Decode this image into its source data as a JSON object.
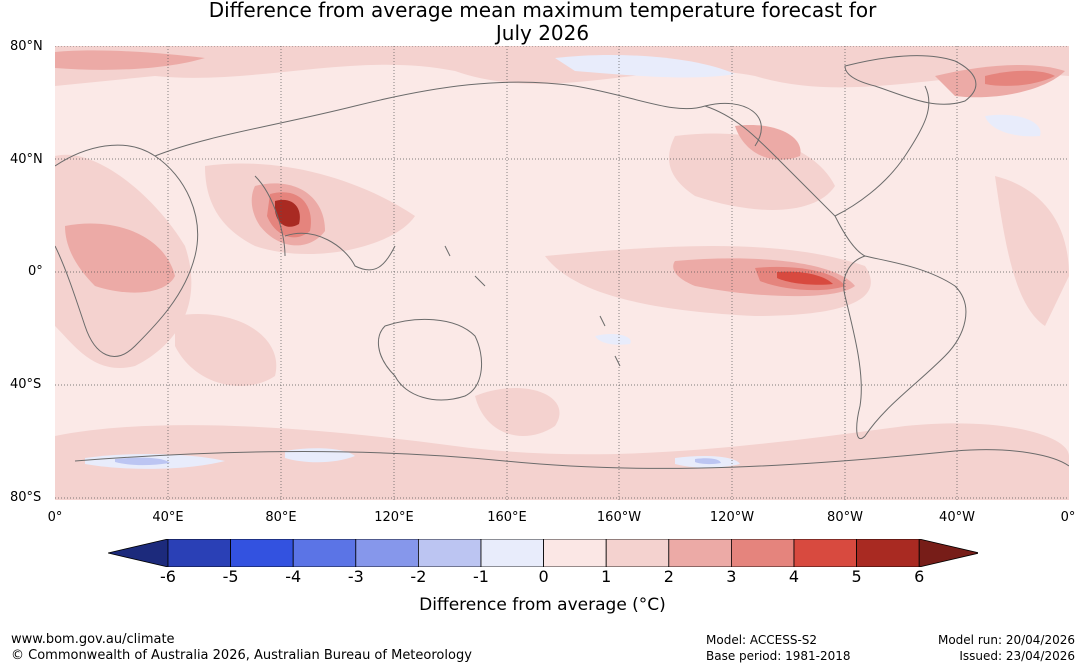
{
  "title_line1": "Difference from average mean maximum temperature forecast for",
  "title_line2": "July 2026",
  "lat_labels": [
    "80°N",
    "40°N",
    "0°",
    "40°S",
    "80°S"
  ],
  "lon_labels": [
    "0°",
    "40°E",
    "80°E",
    "120°E",
    "160°E",
    "160°W",
    "120°W",
    "80°W",
    "40°W",
    "0°"
  ],
  "colorbar": {
    "ticks": [
      "-6",
      "-5",
      "-4",
      "-3",
      "-2",
      "-1",
      "0",
      "1",
      "2",
      "3",
      "4",
      "5",
      "6"
    ],
    "colors": [
      "#1c2a7c",
      "#2a40b6",
      "#3352e0",
      "#5b74e6",
      "#8697eb",
      "#bcc5f2",
      "#e8ecfb",
      "#fbe7e5",
      "#f4d2cf",
      "#ecaaa6",
      "#e5847d",
      "#d84a3f",
      "#a92a22",
      "#771d18"
    ],
    "title": "Difference from average (°C)"
  },
  "ocean_color": "#fbe9e7",
  "footer": {
    "url": "www.bom.gov.au/climate",
    "copyright": "© Commonwealth of Australia 2026, Australian Bureau of Meteorology",
    "model": "Model: ACCESS-S2",
    "base_period": "Base period: 1981-2018",
    "model_run": "Model run: 20/04/2026",
    "issued": "Issued: 23/04/2026"
  }
}
